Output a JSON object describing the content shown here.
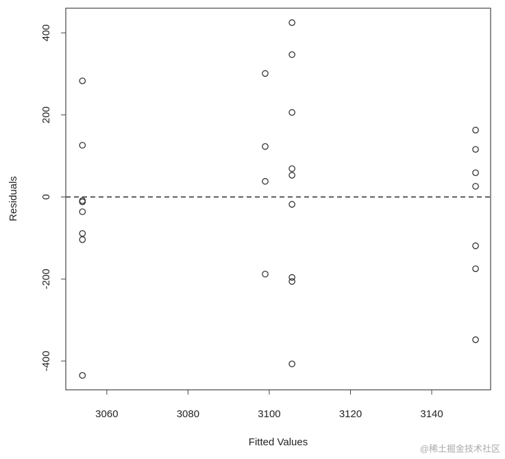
{
  "chart_data": {
    "type": "scatter",
    "x_label": "Fitted Values",
    "y_label": "Residuals",
    "x": [
      3054,
      3054,
      3054,
      3054,
      3054,
      3054,
      3054,
      3054,
      3099,
      3099,
      3099,
      3099,
      3105.6,
      3105.6,
      3105.6,
      3105.6,
      3105.6,
      3105.6,
      3105.6,
      3105.6,
      3105.6,
      3150.8,
      3150.8,
      3150.8,
      3150.8,
      3150.8,
      3150.8,
      3150.8
    ],
    "values": [
      283,
      126,
      -9,
      -12,
      -36,
      -89,
      -104,
      -435,
      301,
      123,
      38,
      -188,
      425,
      347,
      206,
      69,
      53,
      -18,
      -196,
      -206,
      -407,
      163,
      116,
      59,
      26,
      -119,
      -175,
      -348
    ],
    "color": "#333333",
    "xlim": [
      3049.9,
      3154.5
    ],
    "xticks": [
      3060,
      3080,
      3100,
      3120,
      3140
    ],
    "ylim": [
      -470.1,
      460.1
    ],
    "yticks": [
      -400,
      -200,
      0,
      200,
      400
    ],
    "hline": 0,
    "grid": false,
    "watermark": "@稀土掘金技术社区"
  }
}
